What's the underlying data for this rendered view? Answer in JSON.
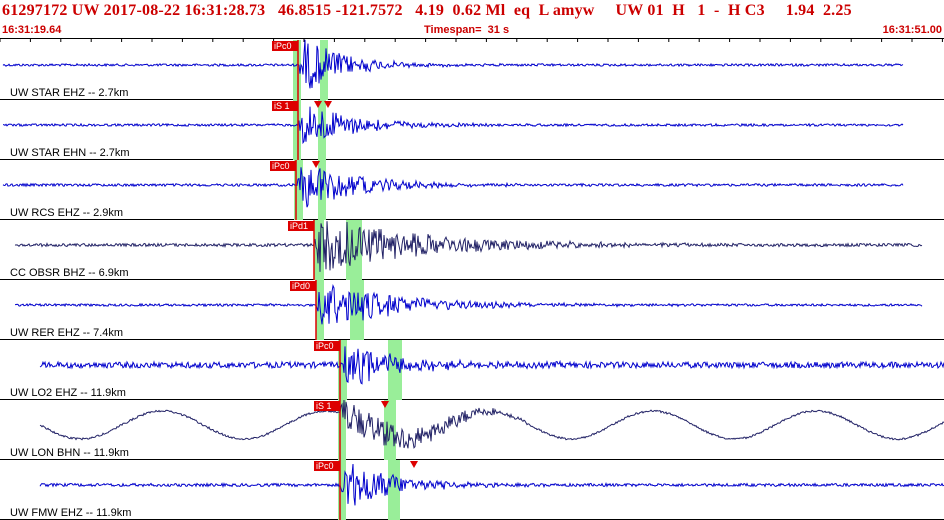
{
  "header": {
    "title": "61297172 UW 2017-08-22 16:31:28.73   46.8515 -121.7572   4.19  0.62 Ml  eq  L amyw     UW 01  H   1  -  H C3     1.94  2.25",
    "time_left": "16:31:19.64",
    "timespan": "Timespan=  31 s",
    "time_right": "16:31:51.00"
  },
  "colors": {
    "header": "#cc0000",
    "trace": "#0000cc",
    "trace_dark": "#222266",
    "pick_window": "#99ee99",
    "pick": "#dd0000"
  },
  "traces": [
    {
      "label": "UW STAR EHZ -- 2.7km",
      "picks": [
        "iPc0"
      ]
    },
    {
      "label": "UW STAR EHN -- 2.7km",
      "picks": [
        "iS 1"
      ]
    },
    {
      "label": "UW RCS EHZ -- 2.9km",
      "picks": [
        "iPc0"
      ]
    },
    {
      "label": "CC OBSR BHZ -- 6.9km",
      "picks": [
        "iPd1"
      ]
    },
    {
      "label": "UW RER EHZ -- 7.4km",
      "picks": [
        "iPd0"
      ]
    },
    {
      "label": "UW LO2 EHZ -- 11.9km",
      "picks": [
        "iPc0"
      ]
    },
    {
      "label": "UW LON BHN -- 11.9km",
      "picks": [
        "iS 1"
      ]
    },
    {
      "label": "UW FMW EHZ -- 11.9km",
      "picks": [
        "iPc0"
      ]
    }
  ]
}
